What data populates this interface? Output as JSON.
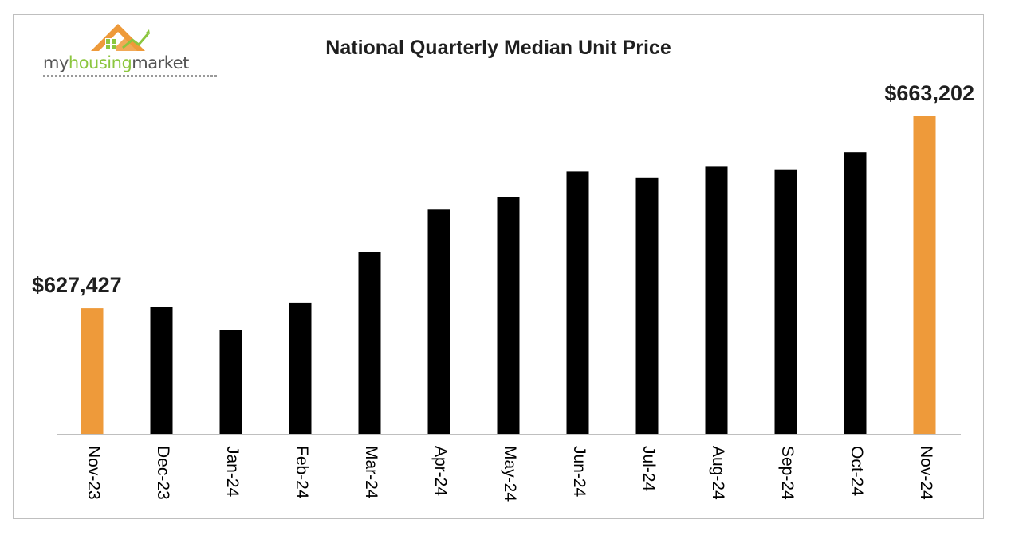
{
  "logo": {
    "text_part1": "my",
    "text_part2": "housing",
    "text_part3": "market"
  },
  "colors": {
    "bar_default": "#000000",
    "bar_highlight": "#ee9a3a",
    "logo_roof": "#ee9a3a",
    "logo_green": "#8cc63f",
    "axis": "#bfbfbf"
  },
  "chart_data": {
    "type": "bar",
    "title": "National Quarterly Median Unit Price",
    "xlabel": "",
    "ylabel": "",
    "categories": [
      "Nov-23",
      "Dec-23",
      "Jan-24",
      "Feb-24",
      "Mar-24",
      "Apr-24",
      "May-24",
      "Jun-24",
      "Jul-24",
      "Aug-24",
      "Sep-24",
      "Oct-24",
      "Nov-24"
    ],
    "values": [
      627427,
      627600,
      623300,
      628500,
      637900,
      645800,
      648100,
      652900,
      651800,
      653800,
      653300,
      656500,
      663202
    ],
    "highlight_indices": [
      0,
      12
    ],
    "data_labels": [
      {
        "index": 0,
        "text": "$627,427"
      },
      {
        "index": 12,
        "text": "$663,202"
      }
    ],
    "ylim": [
      604000,
      668000
    ],
    "grid": false,
    "legend": "none"
  }
}
